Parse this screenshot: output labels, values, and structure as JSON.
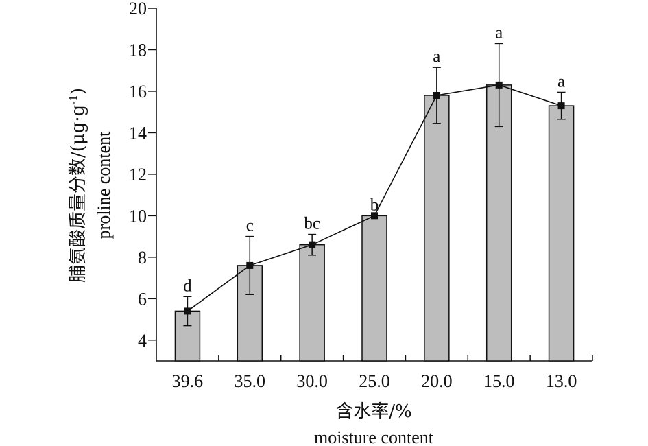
{
  "chart_data": {
    "type": "bar",
    "categories": [
      "39.6",
      "35.0",
      "30.0",
      "25.0",
      "20.0",
      "15.0",
      "13.0"
    ],
    "values": [
      5.4,
      7.6,
      8.6,
      10.0,
      15.8,
      16.3,
      15.3
    ],
    "errors": [
      0.7,
      1.4,
      0.5,
      0.0,
      1.35,
      2.0,
      0.65
    ],
    "significance": [
      "d",
      "c",
      "bc",
      "b",
      "a",
      "a",
      "a"
    ],
    "line_overlay": true,
    "bar_color": "#bdbdbd",
    "ylim": [
      3,
      20
    ],
    "yticks": [
      4,
      6,
      8,
      10,
      12,
      14,
      16,
      18,
      20
    ],
    "ylabel_cn": "脯氨酸质量分数/(μg·g",
    "ylabel_sup": "-1",
    "ylabel_close": ")",
    "ylabel_en": "proline content",
    "xlabel_cn": "含水率/%",
    "xlabel_en": "moisture content",
    "grid": false
  }
}
